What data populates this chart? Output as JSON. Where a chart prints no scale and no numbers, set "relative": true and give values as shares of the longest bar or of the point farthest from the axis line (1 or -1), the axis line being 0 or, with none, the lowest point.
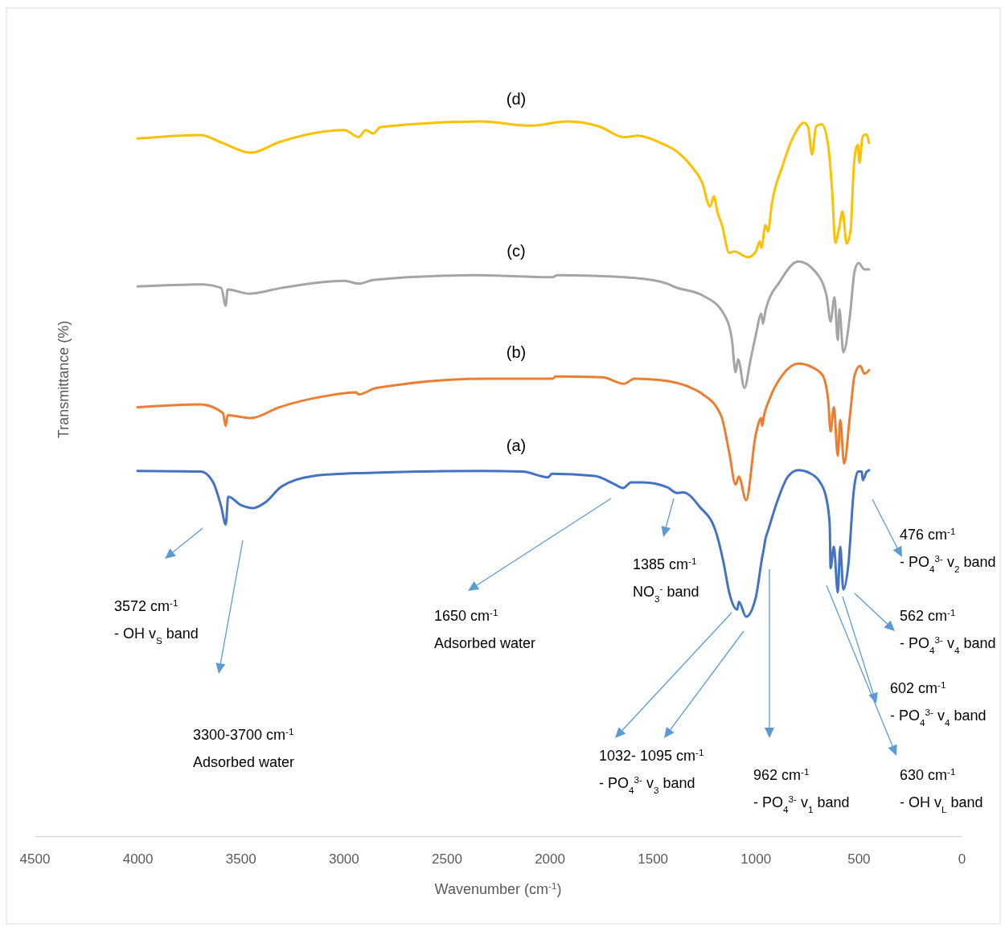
{
  "chart_data": {
    "type": "line",
    "relative": true,
    "xlabel": "Wavenumber (cm$^{-1}$)",
    "ylabel": "Transmittance (%)",
    "xlim": [
      4500,
      0
    ],
    "xticks": [
      4500,
      4000,
      3500,
      3000,
      2500,
      2000,
      1500,
      1000,
      500,
      0
    ],
    "series": [
      {
        "name": "(a)",
        "color": "#4472c4",
        "x": [
          4000,
          3692,
          3633,
          3594,
          3572,
          3560,
          3497,
          3438,
          3380,
          3302,
          3145,
          2911,
          2326,
          2131,
          2006,
          1990,
          1780,
          1682,
          1643,
          1604,
          1545,
          1428,
          1381,
          1350,
          1272,
          1194,
          1155,
          1128,
          1089,
          1081,
          1046,
          999,
          968,
          960,
          952,
          940,
          894,
          843,
          792,
          738,
          687,
          656,
          640,
          636,
          620,
          601,
          589,
          574,
          550,
          523,
          503,
          484,
          480,
          460,
          449
        ],
        "values": [
          0.511,
          0.51,
          0.495,
          0.461,
          0.436,
          0.475,
          0.463,
          0.459,
          0.467,
          0.489,
          0.504,
          0.508,
          0.511,
          0.51,
          0.502,
          0.507,
          0.504,
          0.492,
          0.487,
          0.495,
          0.495,
          0.488,
          0.48,
          0.481,
          0.461,
          0.427,
          0.382,
          0.341,
          0.317,
          0.328,
          0.307,
          0.334,
          0.39,
          0.402,
          0.416,
          0.427,
          0.469,
          0.503,
          0.512,
          0.508,
          0.495,
          0.472,
          0.435,
          0.375,
          0.405,
          0.341,
          0.405,
          0.345,
          0.379,
          0.484,
          0.51,
          0.51,
          0.498,
          0.51,
          0.512
        ]
      },
      {
        "name": "(b)",
        "color": "#ed7d31",
        "x": [
          4000,
          3696,
          3586,
          3572,
          3563,
          3450,
          3313,
          3083,
          2939,
          2927,
          2841,
          2302,
          1986,
          1971,
          1744,
          1639,
          1588,
          1463,
          1311,
          1260,
          1167,
          1128,
          1097,
          1081,
          1046,
          999,
          972,
          968,
          960,
          933,
          870,
          792,
          726,
          675,
          648,
          636,
          620,
          601,
          589,
          570,
          542,
          519,
          492,
          472,
          449
        ],
        "values": [
          0.6,
          0.604,
          0.592,
          0.574,
          0.589,
          0.585,
          0.6,
          0.616,
          0.621,
          0.618,
          0.627,
          0.64,
          0.64,
          0.643,
          0.642,
          0.633,
          0.64,
          0.638,
          0.627,
          0.619,
          0.588,
          0.537,
          0.492,
          0.503,
          0.47,
          0.562,
          0.585,
          0.574,
          0.587,
          0.611,
          0.645,
          0.661,
          0.656,
          0.645,
          0.611,
          0.566,
          0.6,
          0.532,
          0.582,
          0.521,
          0.588,
          0.645,
          0.658,
          0.647,
          0.652
        ]
      },
      {
        "name": "(c)",
        "color": "#a5a5a5",
        "x": [
          4000,
          3692,
          3594,
          3572,
          3563,
          3458,
          3302,
          2997,
          2927,
          2857,
          2369,
          1986,
          1963,
          1584,
          1428,
          1389,
          1260,
          1155,
          1116,
          1097,
          1085,
          1054,
          1026,
          999,
          972,
          964,
          952,
          882,
          792,
          714,
          656,
          636,
          617,
          601,
          593,
          574,
          542,
          519,
          500,
          472,
          449
        ],
        "values": [
          0.769,
          0.772,
          0.767,
          0.742,
          0.765,
          0.759,
          0.767,
          0.777,
          0.773,
          0.778,
          0.785,
          0.782,
          0.785,
          0.781,
          0.773,
          0.768,
          0.757,
          0.731,
          0.697,
          0.649,
          0.667,
          0.627,
          0.664,
          0.701,
          0.731,
          0.717,
          0.735,
          0.776,
          0.804,
          0.791,
          0.757,
          0.72,
          0.754,
          0.694,
          0.737,
          0.677,
          0.728,
          0.791,
          0.802,
          0.793,
          0.793
        ]
      },
      {
        "name": "(d)",
        "color": "#ffc000",
        "x": [
          4000,
          3696,
          3590,
          3450,
          3313,
          2997,
          2927,
          2892,
          2857,
          2821,
          2334,
          2092,
          1916,
          1760,
          1639,
          1569,
          1463,
          1393,
          1311,
          1260,
          1221,
          1202,
          1186,
          1163,
          1128,
          1104,
          1038,
          999,
          980,
          972,
          952,
          940,
          921,
          870,
          816,
          765,
          745,
          726,
          706,
          679,
          648,
          628,
          613,
          597,
          578,
          558,
          539,
          523,
          511,
          503,
          496,
          480,
          464,
          449
        ],
        "values": [
          0.976,
          0.981,
          0.97,
          0.956,
          0.971,
          0.988,
          0.978,
          0.988,
          0.983,
          0.992,
          1.0,
          0.994,
          1.0,
          0.993,
          0.978,
          0.98,
          0.97,
          0.96,
          0.937,
          0.915,
          0.881,
          0.895,
          0.874,
          0.855,
          0.816,
          0.818,
          0.81,
          0.818,
          0.832,
          0.823,
          0.855,
          0.846,
          0.885,
          0.937,
          0.979,
          0.998,
          0.992,
          0.954,
          0.993,
          0.996,
          0.967,
          0.901,
          0.83,
          0.847,
          0.874,
          0.829,
          0.847,
          0.937,
          0.964,
          0.967,
          0.942,
          0.979,
          0.982,
          0.97
        ]
      }
    ],
    "annotations": [
      "3572 cm$^{-1}$\n- OH v$_{S}$ band",
      "3300-3700 cm$^{-1}$\nAdsorbed water",
      "1650 cm$^{-1}$\nAdsorbed water",
      "1385 cm$^{-1}$\nNO$_{3}$$^{-}$ band",
      "1032- 1095 cm$^{-1}$\n- PO$_{4}$$^{3-}$ v$_{3}$ band",
      "962 cm$^{-1}$\n- PO$_{4}$$^{3-}$ v$_{1}$ band",
      "476 cm$^{-1}$\n- PO$_{4}$$^{3-}$ v$_{2}$ band",
      "562 cm$^{-1}$\n- PO$_{4}$$^{3-}$ v$_{4}$ band",
      "602 cm$^{-1}$\n- PO$_{4}$$^{3-}$ v$_{4}$ band",
      "630 cm$^{-1}$\n- OH v$_{L}$ band"
    ]
  }
}
